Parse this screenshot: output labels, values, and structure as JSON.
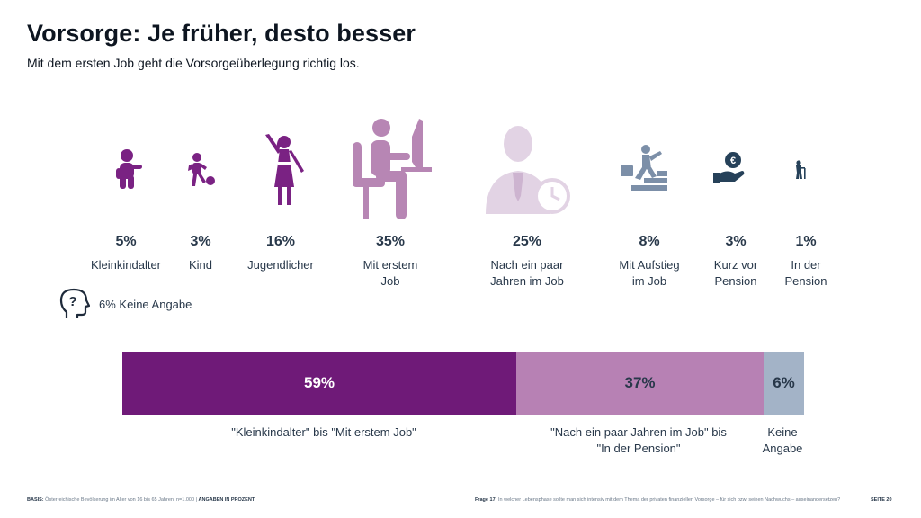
{
  "title": "Vorsorge: Je früher, desto besser",
  "subtitle": "Mit dem ersten Job geht die Vorsorgeüberlegung richtig los.",
  "no_answer": {
    "label": "6% Keine Angabe",
    "icon": "question-head-icon"
  },
  "chart_data": [
    {
      "type": "bar",
      "orientation": "icon-row",
      "categories": [
        "Kleinkindalter",
        "Kind",
        "Jugendlicher",
        "Mit erstem Job",
        "Nach ein paar Jahren im Job",
        "Mit Aufstieg im Job",
        "Kurz vor Pension",
        "In der Pension"
      ],
      "values": [
        5,
        3,
        16,
        35,
        25,
        8,
        3,
        1
      ],
      "value_labels": [
        "5%",
        "3%",
        "16%",
        "35%",
        "25%",
        "8%",
        "3%",
        "1%"
      ],
      "label_lines": [
        [
          "Kleinkindalter"
        ],
        [
          "Kind"
        ],
        [
          "Jugendlicher"
        ],
        [
          "Mit erstem",
          "Job"
        ],
        [
          "Nach ein paar",
          "Jahren im Job"
        ],
        [
          "Mit Aufstieg",
          "im Job"
        ],
        [
          "Kurz vor",
          "Pension"
        ],
        [
          "In der",
          "Pension"
        ]
      ],
      "icons": [
        "toddler-icon",
        "child-ball-icon",
        "teen-girl-icon",
        "person-at-computer-icon",
        "businessman-clock-icon",
        "climbing-stairs-icon",
        "hand-coin-icon",
        "elderly-cane-icon"
      ],
      "colors": [
        "#7a2283",
        "#7a2283",
        "#7a2283",
        "#b786b4",
        "#e2d3e4",
        "#7c8fa8",
        "#264159",
        "#264159"
      ]
    },
    {
      "type": "bar",
      "orientation": "stacked-horizontal",
      "categories": [
        "\"Kleinkindalter\" bis \"Mit erstem Job\"",
        "\"Nach ein paar Jahren im Job\" bis \"In der Pension\"",
        "Keine Angabe"
      ],
      "label_lines": [
        [
          "\"Kleinkindalter\" bis \"Mit erstem Job\""
        ],
        [
          "\"Nach ein paar Jahren im Job\" bis",
          "\"In der Pension\""
        ],
        [
          "Keine",
          "Angabe"
        ]
      ],
      "values": [
        59,
        37,
        6
      ],
      "value_labels": [
        "59%",
        "37%",
        "6%"
      ],
      "colors": [
        "#6f1a78",
        "#b781b4",
        "#a3b3c7"
      ],
      "text_colors": [
        "#ffffff",
        "#28384a",
        "#28384a"
      ]
    }
  ],
  "footer": {
    "basis_label": "BASIS:",
    "basis_text": "Österreichische Bevölkerung im Alter von 16 bis 65 Jahren, n=1.000",
    "unit": "ANGABEN IN PROZENT",
    "question_label": "Frage 17:",
    "question_text": "In welcher Lebensphase sollte man sich intensiv mit dem Thema der privaten finanziellen Vorsorge – für sich bzw. seinen Nachwuchs – auseinandersetzen?",
    "page": "SEITE 20"
  }
}
